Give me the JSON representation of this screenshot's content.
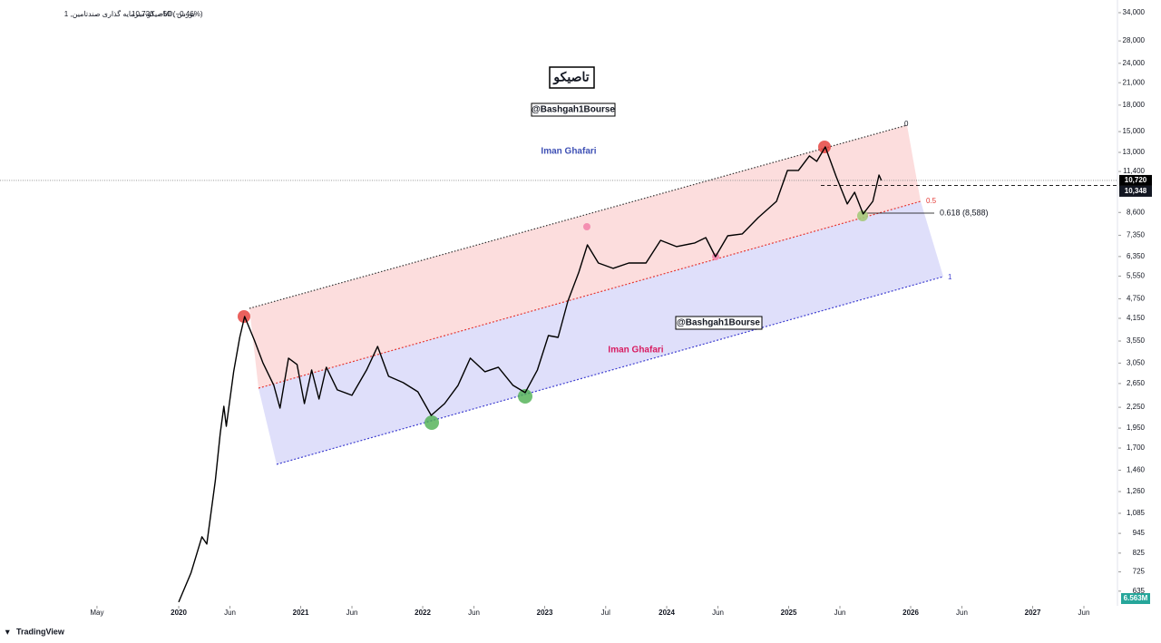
{
  "header": {
    "symbol": "تاصیکو-سرمایه گذاری صندتامین, 1D, بورس",
    "close": "10,720",
    "change": "−50 (−0.46%)"
  },
  "brand": "TradingView",
  "annotations": {
    "logo": "تاصیکو",
    "watermark": "@Bashgah1Bourse",
    "author": "Iman Ghafari",
    "fib_levels": [
      "0",
      "0.5",
      "1"
    ],
    "fib_618": "0.618 (8,588)"
  },
  "chart_data": {
    "type": "line",
    "log_scale": true,
    "grid": false,
    "xlim": [
      2018.535,
      2027.695
    ],
    "ylim": [
      574,
      37100
    ],
    "xticks": [
      {
        "value": 2019.33,
        "label": "May"
      },
      2020,
      {
        "value": 2020.42,
        "label": "Jun"
      },
      2021,
      {
        "value": 2021.42,
        "label": "Jun"
      },
      2022,
      {
        "value": 2022.42,
        "label": "Jun"
      },
      2023,
      {
        "value": 2023.5,
        "label": "Jul"
      },
      2024,
      {
        "value": 2024.42,
        "label": "Jun"
      },
      2025,
      {
        "value": 2025.42,
        "label": "Jun"
      },
      2026,
      {
        "value": 2026.42,
        "label": "Jun"
      },
      2027,
      {
        "value": 2027.42,
        "label": "Jun"
      }
    ],
    "yticks": [
      {
        "value": 34000,
        "label": "34,000"
      },
      {
        "value": 28000,
        "label": "28,000"
      },
      {
        "value": 24000,
        "label": "24,000"
      },
      {
        "value": 21000,
        "label": "21,000"
      },
      {
        "value": 18000,
        "label": "18,000"
      },
      {
        "value": 15000,
        "label": "15,000"
      },
      {
        "value": 13000,
        "label": "13,000"
      },
      {
        "value": 11400,
        "label": "11,400"
      },
      {
        "value": 8600,
        "label": "8,600"
      },
      {
        "value": 7350,
        "label": "7,350"
      },
      {
        "value": 6350,
        "label": "6,350"
      },
      {
        "value": 5550,
        "label": "5,550"
      },
      {
        "value": 4750,
        "label": "4,750"
      },
      {
        "value": 4150,
        "label": "4,150"
      },
      {
        "value": 3550,
        "label": "3,550"
      },
      {
        "value": 3050,
        "label": "3,050"
      },
      {
        "value": 2650,
        "label": "2,650"
      },
      {
        "value": 2250,
        "label": "2,250"
      },
      {
        "value": 1950,
        "label": "1,950"
      },
      {
        "value": 1700,
        "label": "1,700"
      },
      {
        "value": 1460,
        "label": "1,460"
      },
      {
        "value": 1260,
        "label": "1,260"
      },
      {
        "value": 1085,
        "label": "1,085"
      },
      945,
      825,
      725,
      635
    ],
    "last_price": {
      "value": 10720,
      "label": "10,720"
    },
    "prev_price": {
      "value": 10348,
      "label": "10,348"
    },
    "volume_label": "6.563M",
    "series": [
      {
        "color": "#000000",
        "x": [
          2020.0,
          2020.1,
          2020.19,
          2020.23,
          2020.3,
          2020.34,
          2020.37,
          2020.39,
          2020.45,
          2020.5,
          2020.54,
          2020.62,
          2020.69,
          2020.78,
          2020.83,
          2020.9,
          2020.97,
          2021.03,
          2021.09,
          2021.15,
          2021.21,
          2021.3,
          2021.42,
          2021.54,
          2021.63,
          2021.72,
          2021.84,
          2021.96,
          2022.07,
          2022.18,
          2022.29,
          2022.39,
          2022.51,
          2022.62,
          2022.74,
          2022.84,
          2022.94,
          2023.03,
          2023.11,
          2023.19,
          2023.28,
          2023.35,
          2023.44,
          2023.56,
          2023.69,
          2023.83,
          2023.95,
          2024.08,
          2024.23,
          2024.32,
          2024.4,
          2024.5,
          2024.62,
          2024.75,
          2024.9,
          2024.99,
          2025.08,
          2025.17,
          2025.23,
          2025.3,
          2025.39,
          2025.48,
          2025.54,
          2025.61,
          2025.69,
          2025.74,
          2025.76
        ],
        "values": [
          589,
          719,
          923,
          878,
          1359,
          1879,
          2266,
          1975,
          2873,
          3641,
          4203,
          3574,
          3058,
          2617,
          2238,
          3155,
          3020,
          2309,
          2909,
          2382,
          2965,
          2536,
          2443,
          2909,
          3421,
          2785,
          2666,
          2504,
          2129,
          2309,
          2617,
          3155,
          2873,
          2965,
          2617,
          2489,
          2909,
          3687,
          3641,
          4674,
          5706,
          6881,
          6074,
          5852,
          6074,
          6074,
          7100,
          6797,
          6970,
          7234,
          6346,
          7324,
          7418,
          8299,
          9286,
          11482,
          11482,
          12689,
          12224,
          13500,
          10990,
          9114,
          9883,
          8510,
          9286,
          11128,
          10720
        ]
      }
    ]
  }
}
